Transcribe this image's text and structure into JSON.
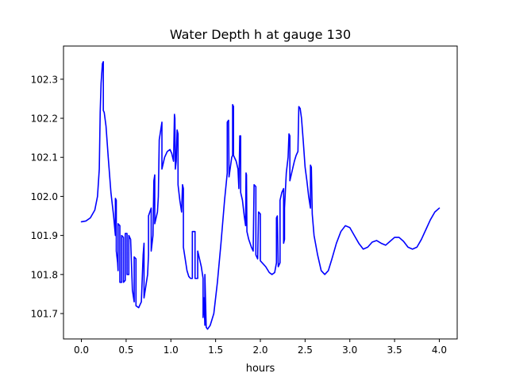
{
  "chart_data": {
    "type": "line",
    "title": "Water Depth h at gauge 130",
    "xlabel": "hours",
    "ylabel": "",
    "xlim": [
      -0.2,
      4.2
    ],
    "ylim": [
      101.635,
      102.385
    ],
    "xticks": [
      0.0,
      0.5,
      1.0,
      1.5,
      2.0,
      2.5,
      3.0,
      3.5,
      4.0
    ],
    "xtick_labels": [
      "0.0",
      "0.5",
      "1.0",
      "1.5",
      "2.0",
      "2.5",
      "3.0",
      "3.5",
      "4.0"
    ],
    "yticks": [
      101.7,
      101.8,
      101.9,
      102.0,
      102.1,
      102.2,
      102.3
    ],
    "ytick_labels": [
      "101.7",
      "101.8",
      "101.9",
      "102.0",
      "102.1",
      "102.2",
      "102.3"
    ],
    "grid": false,
    "series": [
      {
        "color": "#0000ff",
        "points": [
          [
            0.0,
            101.935
          ],
          [
            0.05,
            101.937
          ],
          [
            0.1,
            101.945
          ],
          [
            0.15,
            101.965
          ],
          [
            0.18,
            102.0
          ],
          [
            0.2,
            102.07
          ],
          [
            0.21,
            102.215
          ],
          [
            0.22,
            102.29
          ],
          [
            0.235,
            102.34
          ],
          [
            0.245,
            102.345
          ],
          [
            0.245,
            102.22
          ],
          [
            0.255,
            102.215
          ],
          [
            0.275,
            102.18
          ],
          [
            0.3,
            102.1
          ],
          [
            0.33,
            102.01
          ],
          [
            0.36,
            101.95
          ],
          [
            0.38,
            101.9
          ],
          [
            0.38,
            101.995
          ],
          [
            0.39,
            101.99
          ],
          [
            0.39,
            101.86
          ],
          [
            0.405,
            101.83
          ],
          [
            0.41,
            101.81
          ],
          [
            0.41,
            101.93
          ],
          [
            0.43,
            101.925
          ],
          [
            0.43,
            101.78
          ],
          [
            0.45,
            101.78
          ],
          [
            0.45,
            101.9
          ],
          [
            0.47,
            101.895
          ],
          [
            0.47,
            101.78
          ],
          [
            0.49,
            101.785
          ],
          [
            0.49,
            101.905
          ],
          [
            0.51,
            101.905
          ],
          [
            0.51,
            101.8
          ],
          [
            0.53,
            101.8
          ],
          [
            0.53,
            101.9
          ],
          [
            0.55,
            101.89
          ],
          [
            0.57,
            101.76
          ],
          [
            0.59,
            101.73
          ],
          [
            0.59,
            101.845
          ],
          [
            0.61,
            101.84
          ],
          [
            0.61,
            101.72
          ],
          [
            0.64,
            101.715
          ],
          [
            0.67,
            101.73
          ],
          [
            0.69,
            101.85
          ],
          [
            0.7,
            101.88
          ],
          [
            0.7,
            101.74
          ],
          [
            0.74,
            101.8
          ],
          [
            0.75,
            101.85
          ],
          [
            0.75,
            101.95
          ],
          [
            0.78,
            101.97
          ],
          [
            0.78,
            101.86
          ],
          [
            0.8,
            101.9
          ],
          [
            0.81,
            102.04
          ],
          [
            0.82,
            102.055
          ],
          [
            0.82,
            101.93
          ],
          [
            0.85,
            101.96
          ],
          [
            0.86,
            102.0
          ],
          [
            0.87,
            102.145
          ],
          [
            0.89,
            102.175
          ],
          [
            0.9,
            102.19
          ],
          [
            0.9,
            102.07
          ],
          [
            0.93,
            102.1
          ],
          [
            0.96,
            102.115
          ],
          [
            0.99,
            102.12
          ],
          [
            1.01,
            102.11
          ],
          [
            1.03,
            102.09
          ],
          [
            1.04,
            102.21
          ],
          [
            1.045,
            102.2
          ],
          [
            1.05,
            102.07
          ],
          [
            1.06,
            102.09
          ],
          [
            1.07,
            102.17
          ],
          [
            1.08,
            102.16
          ],
          [
            1.08,
            102.03
          ],
          [
            1.1,
            101.99
          ],
          [
            1.12,
            101.96
          ],
          [
            1.13,
            102.03
          ],
          [
            1.14,
            102.02
          ],
          [
            1.14,
            101.87
          ],
          [
            1.16,
            101.84
          ],
          [
            1.18,
            101.81
          ],
          [
            1.2,
            101.795
          ],
          [
            1.22,
            101.79
          ],
          [
            1.24,
            101.79
          ],
          [
            1.24,
            101.91
          ],
          [
            1.27,
            101.91
          ],
          [
            1.27,
            101.79
          ],
          [
            1.3,
            101.79
          ],
          [
            1.3,
            101.86
          ],
          [
            1.32,
            101.84
          ],
          [
            1.34,
            101.82
          ],
          [
            1.36,
            101.79
          ],
          [
            1.36,
            101.69
          ],
          [
            1.37,
            101.74
          ],
          [
            1.38,
            101.67
          ],
          [
            1.38,
            101.8
          ],
          [
            1.39,
            101.71
          ],
          [
            1.395,
            101.665
          ],
          [
            1.41,
            101.66
          ],
          [
            1.44,
            101.67
          ],
          [
            1.48,
            101.7
          ],
          [
            1.52,
            101.78
          ],
          [
            1.56,
            101.88
          ],
          [
            1.6,
            101.99
          ],
          [
            1.63,
            102.06
          ],
          [
            1.63,
            102.19
          ],
          [
            1.645,
            102.195
          ],
          [
            1.65,
            102.05
          ],
          [
            1.68,
            102.1
          ],
          [
            1.69,
            102.105
          ],
          [
            1.69,
            102.235
          ],
          [
            1.7,
            102.23
          ],
          [
            1.7,
            102.105
          ],
          [
            1.73,
            102.09
          ],
          [
            1.75,
            102.07
          ],
          [
            1.76,
            102.02
          ],
          [
            1.77,
            102.155
          ],
          [
            1.78,
            102.155
          ],
          [
            1.78,
            102.01
          ],
          [
            1.8,
            101.99
          ],
          [
            1.82,
            101.95
          ],
          [
            1.835,
            101.925
          ],
          [
            1.84,
            102.06
          ],
          [
            1.845,
            102.055
          ],
          [
            1.85,
            101.91
          ],
          [
            1.87,
            101.89
          ],
          [
            1.9,
            101.87
          ],
          [
            1.92,
            101.86
          ],
          [
            1.93,
            102.03
          ],
          [
            1.95,
            102.025
          ],
          [
            1.95,
            101.85
          ],
          [
            1.97,
            101.84
          ],
          [
            1.98,
            101.96
          ],
          [
            2.0,
            101.955
          ],
          [
            2.0,
            101.835
          ],
          [
            2.06,
            101.82
          ],
          [
            2.1,
            101.805
          ],
          [
            2.13,
            101.8
          ],
          [
            2.16,
            101.805
          ],
          [
            2.18,
            101.83
          ],
          [
            2.18,
            101.945
          ],
          [
            2.19,
            101.95
          ],
          [
            2.2,
            101.82
          ],
          [
            2.22,
            101.83
          ],
          [
            2.22,
            101.99
          ],
          [
            2.24,
            102.01
          ],
          [
            2.26,
            102.02
          ],
          [
            2.26,
            101.88
          ],
          [
            2.27,
            101.89
          ],
          [
            2.27,
            101.97
          ],
          [
            2.29,
            102.06
          ],
          [
            2.31,
            102.1
          ],
          [
            2.32,
            102.16
          ],
          [
            2.33,
            102.155
          ],
          [
            2.33,
            102.04
          ],
          [
            2.36,
            102.07
          ],
          [
            2.38,
            102.09
          ],
          [
            2.4,
            102.105
          ],
          [
            2.42,
            102.115
          ],
          [
            2.43,
            102.23
          ],
          [
            2.445,
            102.225
          ],
          [
            2.46,
            102.2
          ],
          [
            2.48,
            102.14
          ],
          [
            2.5,
            102.075
          ],
          [
            2.52,
            102.04
          ],
          [
            2.54,
            102.0
          ],
          [
            2.56,
            101.97
          ],
          [
            2.56,
            102.08
          ],
          [
            2.57,
            102.075
          ],
          [
            2.58,
            101.955
          ],
          [
            2.6,
            101.9
          ],
          [
            2.64,
            101.85
          ],
          [
            2.68,
            101.81
          ],
          [
            2.72,
            101.8
          ],
          [
            2.76,
            101.81
          ],
          [
            2.8,
            101.84
          ],
          [
            2.85,
            101.88
          ],
          [
            2.9,
            101.91
          ],
          [
            2.95,
            101.925
          ],
          [
            3.0,
            101.92
          ],
          [
            3.05,
            101.9
          ],
          [
            3.1,
            101.88
          ],
          [
            3.15,
            101.865
          ],
          [
            3.2,
            101.87
          ],
          [
            3.25,
            101.883
          ],
          [
            3.3,
            101.887
          ],
          [
            3.35,
            101.88
          ],
          [
            3.4,
            101.875
          ],
          [
            3.45,
            101.885
          ],
          [
            3.5,
            101.895
          ],
          [
            3.55,
            101.895
          ],
          [
            3.6,
            101.885
          ],
          [
            3.65,
            101.87
          ],
          [
            3.7,
            101.865
          ],
          [
            3.75,
            101.87
          ],
          [
            3.8,
            101.89
          ],
          [
            3.85,
            101.915
          ],
          [
            3.9,
            101.94
          ],
          [
            3.95,
            101.96
          ],
          [
            4.0,
            101.97
          ]
        ]
      }
    ]
  }
}
